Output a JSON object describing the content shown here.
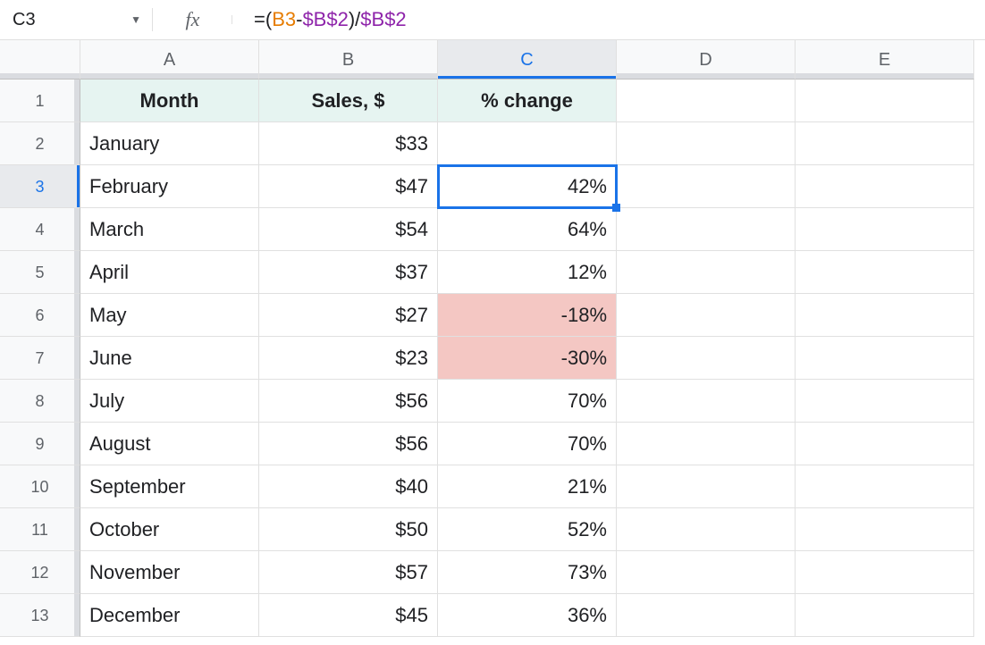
{
  "nameBox": "C3",
  "formula": {
    "tokens": [
      {
        "text": "=",
        "cls": "tk-eq"
      },
      {
        "text": "(",
        "cls": "tk-par"
      },
      {
        "text": "B3",
        "cls": "tk-rel"
      },
      {
        "text": "-",
        "cls": "tk-op"
      },
      {
        "text": "$B$2",
        "cls": "tk-abs"
      },
      {
        "text": ")",
        "cls": "tk-par"
      },
      {
        "text": "/",
        "cls": "tk-op"
      },
      {
        "text": "$B$2",
        "cls": "tk-abs"
      }
    ]
  },
  "colors": {
    "headerFill": "#e6f4f1",
    "negFill": "#f4c7c3",
    "selection": "#1a73e8"
  },
  "columns": [
    "A",
    "B",
    "C",
    "D",
    "E"
  ],
  "selectedCol": 2,
  "selectedRow": 3,
  "headers": {
    "A": "Month",
    "B": "Sales, $",
    "C": "% change"
  },
  "rows": [
    {
      "n": 2,
      "month": "January",
      "sales": "$33",
      "pct": "",
      "neg": false
    },
    {
      "n": 3,
      "month": "February",
      "sales": "$47",
      "pct": "42%",
      "neg": false
    },
    {
      "n": 4,
      "month": "March",
      "sales": "$54",
      "pct": "64%",
      "neg": false
    },
    {
      "n": 5,
      "month": "April",
      "sales": "$37",
      "pct": "12%",
      "neg": false
    },
    {
      "n": 6,
      "month": "May",
      "sales": "$27",
      "pct": "-18%",
      "neg": true
    },
    {
      "n": 7,
      "month": "June",
      "sales": "$23",
      "pct": "-30%",
      "neg": true
    },
    {
      "n": 8,
      "month": "July",
      "sales": "$56",
      "pct": "70%",
      "neg": false
    },
    {
      "n": 9,
      "month": "August",
      "sales": "$56",
      "pct": "70%",
      "neg": false
    },
    {
      "n": 10,
      "month": "September",
      "sales": "$40",
      "pct": "21%",
      "neg": false
    },
    {
      "n": 11,
      "month": "October",
      "sales": "$50",
      "pct": "52%",
      "neg": false
    },
    {
      "n": 12,
      "month": "November",
      "sales": "$57",
      "pct": "73%",
      "neg": false
    },
    {
      "n": 13,
      "month": "December",
      "sales": "$45",
      "pct": "36%",
      "neg": false
    }
  ]
}
